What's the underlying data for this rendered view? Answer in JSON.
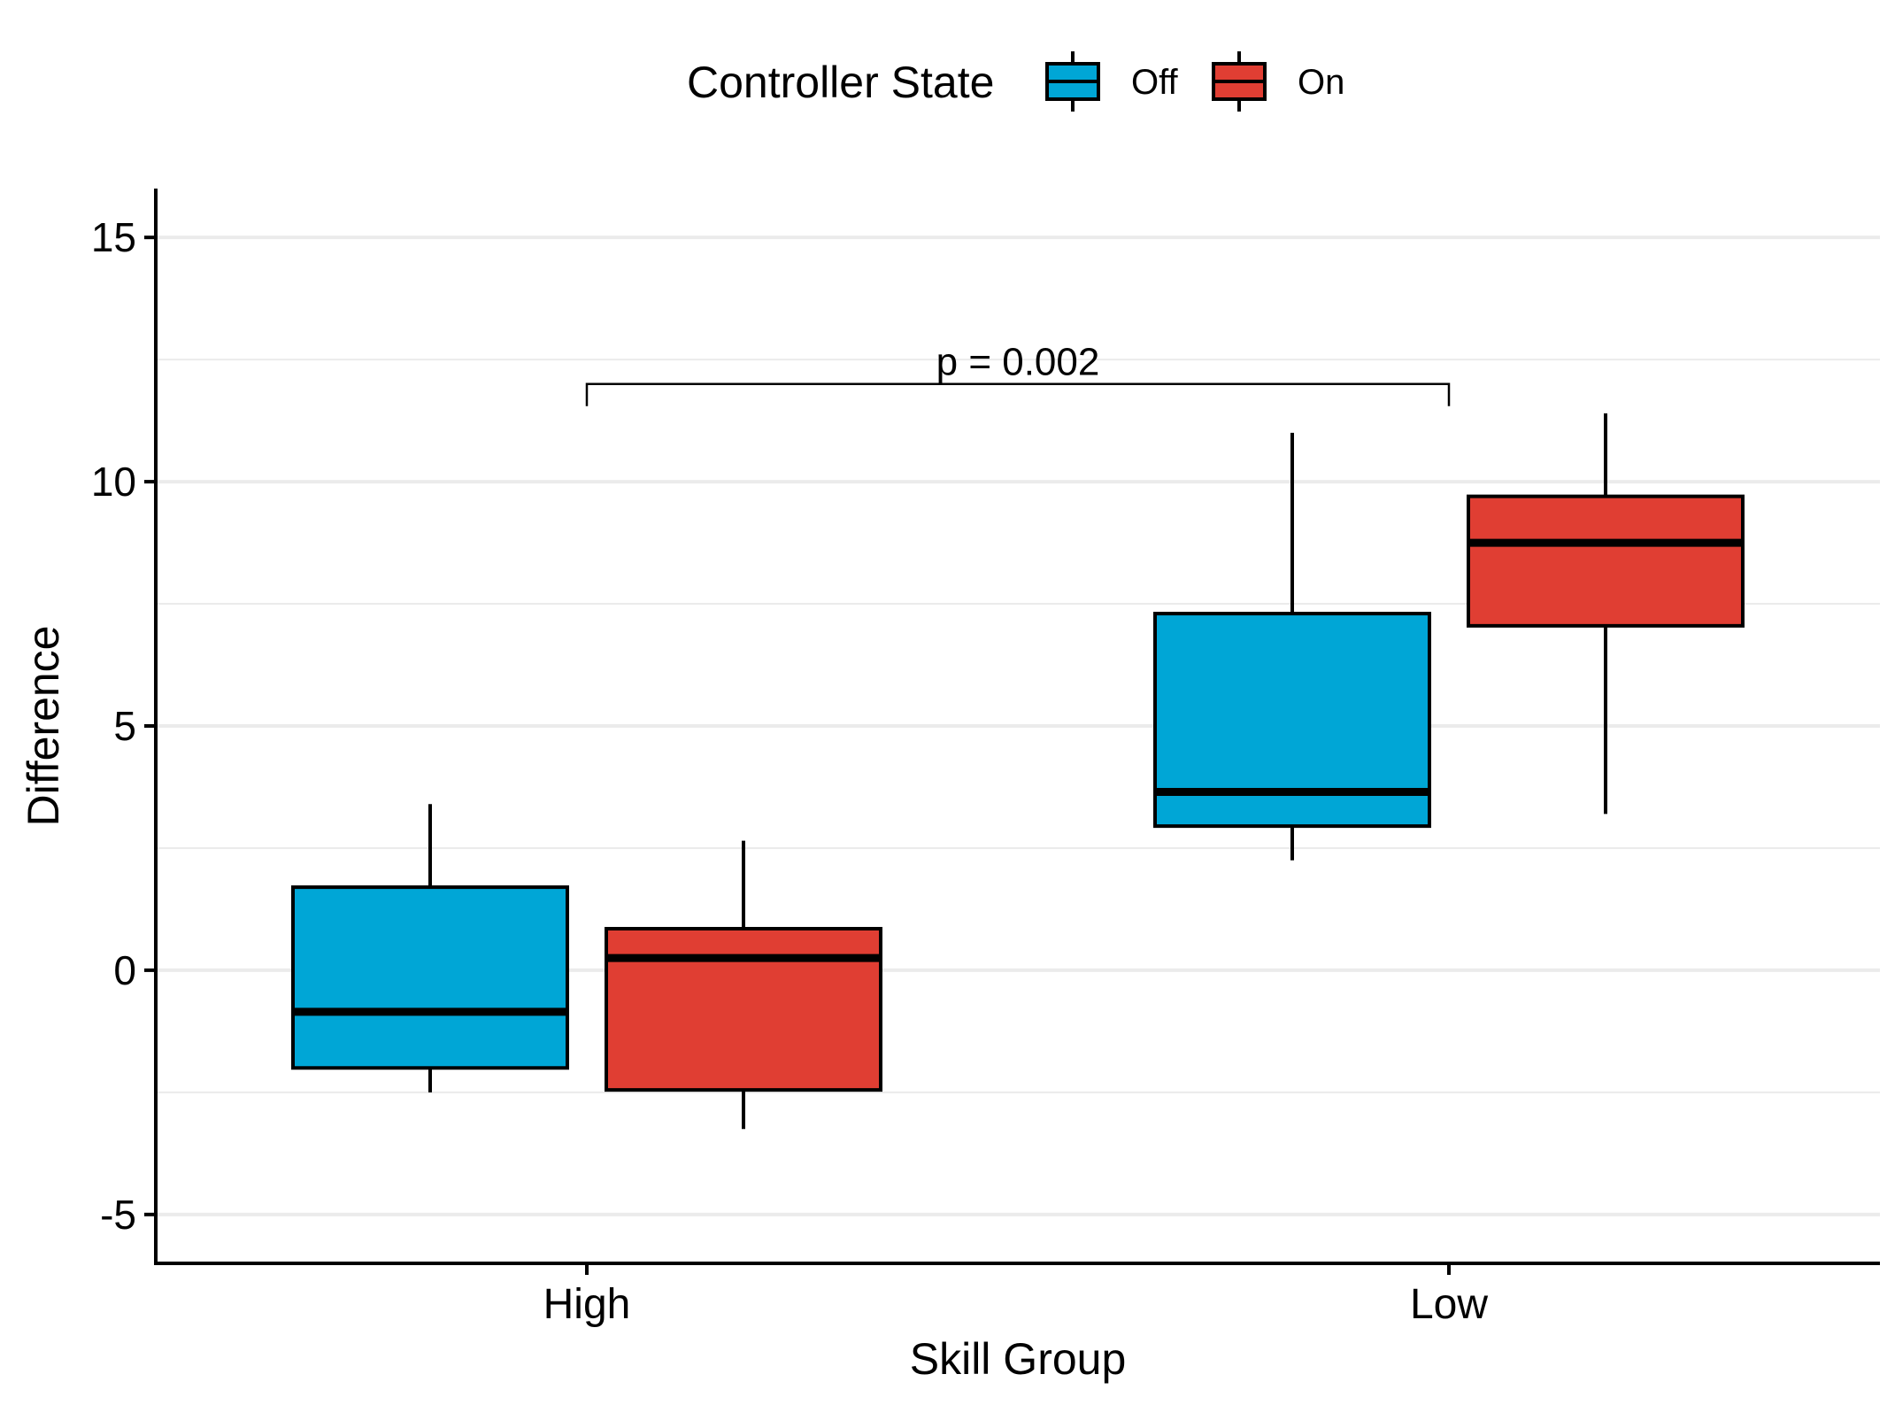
{
  "chart_data": {
    "type": "box",
    "xlabel": "Skill Group",
    "ylabel": "Difference",
    "ylim": [
      -6,
      16
    ],
    "yticks": [
      -5,
      0,
      5,
      10,
      15
    ],
    "ytick_labels": [
      "-5",
      "0",
      "5",
      "10",
      "15"
    ],
    "minor_gridlines": [
      -2.5,
      2.5,
      7.5,
      12.5
    ],
    "grid": "horizontal",
    "categories": [
      "High",
      "Low"
    ],
    "legend": {
      "title": "Controller State",
      "position": "top",
      "items": [
        {
          "label": "Off",
          "color": "#00A6D6"
        },
        {
          "label": "On",
          "color": "#E03E33"
        }
      ]
    },
    "series": [
      {
        "name": "Off",
        "color": "#00A6D6",
        "boxes": [
          {
            "category": "High",
            "whisker_low": -2.5,
            "q1": -2.0,
            "median": -0.85,
            "q3": 1.7,
            "whisker_high": 3.4
          },
          {
            "category": "Low",
            "whisker_low": 2.25,
            "q1": 2.95,
            "median": 3.65,
            "q3": 7.3,
            "whisker_high": 11.0
          }
        ]
      },
      {
        "name": "On",
        "color": "#E03E33",
        "boxes": [
          {
            "category": "High",
            "whisker_low": -3.25,
            "q1": -2.45,
            "median": 0.25,
            "q3": 0.85,
            "whisker_high": 2.65
          },
          {
            "category": "Low",
            "whisker_low": 3.2,
            "q1": 7.05,
            "median": 8.75,
            "q3": 9.7,
            "whisker_high": 11.4
          }
        ]
      }
    ],
    "annotations": [
      {
        "text": "p = 0.002",
        "from": "High",
        "to": "Low",
        "y": 12.0
      }
    ]
  }
}
